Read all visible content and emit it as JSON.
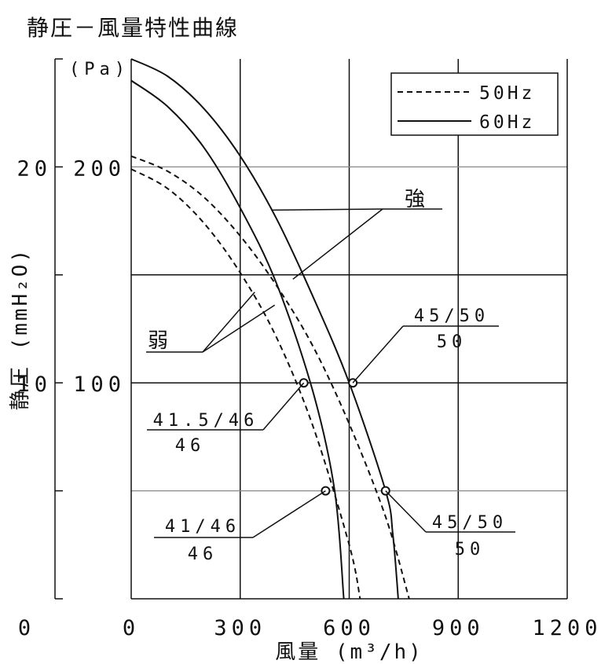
{
  "chart_data": {
    "type": "line",
    "title": "静圧－風量特性曲線",
    "xlabel": "風量",
    "xlabel_unit": "m³/h",
    "ylabel": "静圧",
    "ylabel_unit": "mmH₂O",
    "y_pa_unit": "(Pa)",
    "xlim": [
      0,
      1200
    ],
    "ylim_pa": [
      0,
      250
    ],
    "x_ticks": [
      "0",
      "300",
      "600",
      "900",
      "1200"
    ],
    "y_pa_ticks": [
      "200",
      "100"
    ],
    "y_mm_ticks": [
      "20",
      "10"
    ],
    "y_mm_zero": "0",
    "grid": true,
    "legend_position": "top-right",
    "legend": [
      {
        "label": "50Hz",
        "style": "dashed"
      },
      {
        "label": "60Hz",
        "style": "solid"
      }
    ],
    "series": [
      {
        "name": "50Hz",
        "setting": "弱",
        "style": "dashed",
        "points": [
          [
            0,
            199
          ],
          [
            100,
            190
          ],
          [
            200,
            174
          ],
          [
            300,
            151
          ],
          [
            400,
            121
          ],
          [
            500,
            80
          ],
          [
            600,
            25
          ],
          [
            630,
            0
          ]
        ]
      },
      {
        "name": "50Hz",
        "setting": "強",
        "style": "dashed",
        "points": [
          [
            0,
            205
          ],
          [
            100,
            198
          ],
          [
            200,
            186
          ],
          [
            300,
            168
          ],
          [
            400,
            145
          ],
          [
            500,
            117
          ],
          [
            600,
            81
          ],
          [
            700,
            38
          ],
          [
            765,
            0
          ]
        ]
      },
      {
        "name": "60Hz",
        "setting": "弱",
        "style": "solid",
        "points": [
          [
            0,
            240
          ],
          [
            100,
            228
          ],
          [
            200,
            209
          ],
          [
            300,
            181
          ],
          [
            400,
            146
          ],
          [
            500,
            96
          ],
          [
            560,
            50
          ],
          [
            585,
            0
          ]
        ]
      },
      {
        "name": "60Hz",
        "setting": "強",
        "style": "solid",
        "points": [
          [
            0,
            250
          ],
          [
            100,
            242
          ],
          [
            200,
            227
          ],
          [
            300,
            205
          ],
          [
            400,
            176
          ],
          [
            500,
            140
          ],
          [
            600,
            100
          ],
          [
            700,
            50
          ],
          [
            720,
            30
          ],
          [
            735,
            0
          ]
        ]
      }
    ],
    "operating_points": [
      {
        "x": 475,
        "y": 100,
        "label_top": "41.5/46",
        "label_bottom": "46"
      },
      {
        "x": 610,
        "y": 100,
        "label_top": "45/50",
        "label_bottom": "50"
      },
      {
        "x": 535,
        "y": 50,
        "label_top": "41/46",
        "label_bottom": "46"
      },
      {
        "x": 700,
        "y": 50,
        "label_top": "45/50",
        "label_bottom": "50"
      }
    ],
    "annotations": [
      {
        "text": "強"
      },
      {
        "text": "弱"
      }
    ]
  }
}
